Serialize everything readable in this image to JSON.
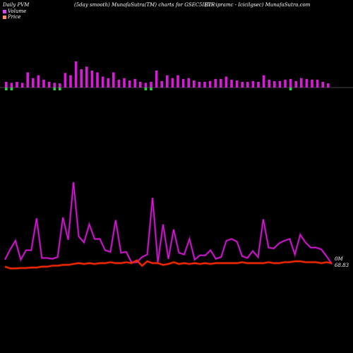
{
  "header": {
    "left": "Daily PVM",
    "center": "(5day smooth) MunafaSutra(TM) charts for GSEC5IETF",
    "right": "(Icicipramc - Icicilgsec) MunafaSutra.com"
  },
  "legend": [
    {
      "label": "Volume",
      "color": "#e040fb"
    },
    {
      "label": "Price",
      "color": "#ff8a65"
    }
  ],
  "colors": {
    "volume_up": "#d81bd8",
    "volume_down": "#2ecc40",
    "volume_line": "#d81bd8",
    "price_line": "#ff2a00",
    "axis": "#888888"
  },
  "chart_data": {
    "type": "bar+line",
    "volume_bars": [
      0.22,
      0.18,
      0.22,
      0.18,
      0.58,
      0.36,
      0.47,
      0.3,
      0.22,
      0.18,
      0.16,
      0.56,
      0.47,
      1.0,
      0.7,
      0.8,
      0.65,
      0.58,
      0.42,
      0.36,
      0.58,
      0.3,
      0.36,
      0.27,
      0.33,
      0.22,
      0.18,
      0.22,
      0.65,
      0.25,
      0.47,
      0.36,
      0.47,
      0.33,
      0.36,
      0.27,
      0.22,
      0.22,
      0.25,
      0.33,
      0.33,
      0.42,
      0.3,
      0.27,
      0.22,
      0.22,
      0.25,
      0.22,
      0.47,
      0.3,
      0.25,
      0.25,
      0.3,
      0.33,
      0.25,
      0.36,
      0.33,
      0.3,
      0.3,
      0.22,
      0.16
    ],
    "volume_down_idx": [
      0,
      1,
      9,
      10,
      26,
      27,
      53
    ],
    "volume_line": [
      0.1,
      0.22,
      0.32,
      0.1,
      0.21,
      0.21,
      0.58,
      0.12,
      0.12,
      0.11,
      0.13,
      0.59,
      0.33,
      1.0,
      0.37,
      0.3,
      0.51,
      0.34,
      0.34,
      0.21,
      0.19,
      0.56,
      0.18,
      0.19,
      0.07,
      0.07,
      0.13,
      0.16,
      0.82,
      0.07,
      0.51,
      0.11,
      0.45,
      0.18,
      0.16,
      0.34,
      0.1,
      0.15,
      0.15,
      0.21,
      0.11,
      0.13,
      0.32,
      0.34,
      0.31,
      0.14,
      0.12,
      0.2,
      0.13,
      0.57,
      0.24,
      0.23,
      0.29,
      0.32,
      0.34,
      0.16,
      0.39,
      0.3,
      0.24,
      0.24,
      0.22,
      0.14,
      0.05
    ],
    "price_line": [
      0.05,
      0.03,
      0.03,
      0.035,
      0.035,
      0.04,
      0.04,
      0.05,
      0.05,
      0.06,
      0.06,
      0.07,
      0.07,
      0.08,
      0.09,
      0.08,
      0.09,
      0.08,
      0.09,
      0.09,
      0.1,
      0.09,
      0.09,
      0.1,
      0.09,
      0.12,
      0.06,
      0.11,
      0.09,
      0.09,
      0.07,
      0.08,
      0.1,
      0.08,
      0.09,
      0.08,
      0.09,
      0.08,
      0.09,
      0.08,
      0.09,
      0.09,
      0.09,
      0.09,
      0.09,
      0.1,
      0.09,
      0.09,
      0.09,
      0.09,
      0.1,
      0.09,
      0.09,
      0.1,
      0.1,
      0.11,
      0.11,
      0.1,
      0.1,
      0.1,
      0.09,
      0.1,
      0.09
    ],
    "volume_end_label": "0M",
    "price_end_label": "68.83"
  }
}
